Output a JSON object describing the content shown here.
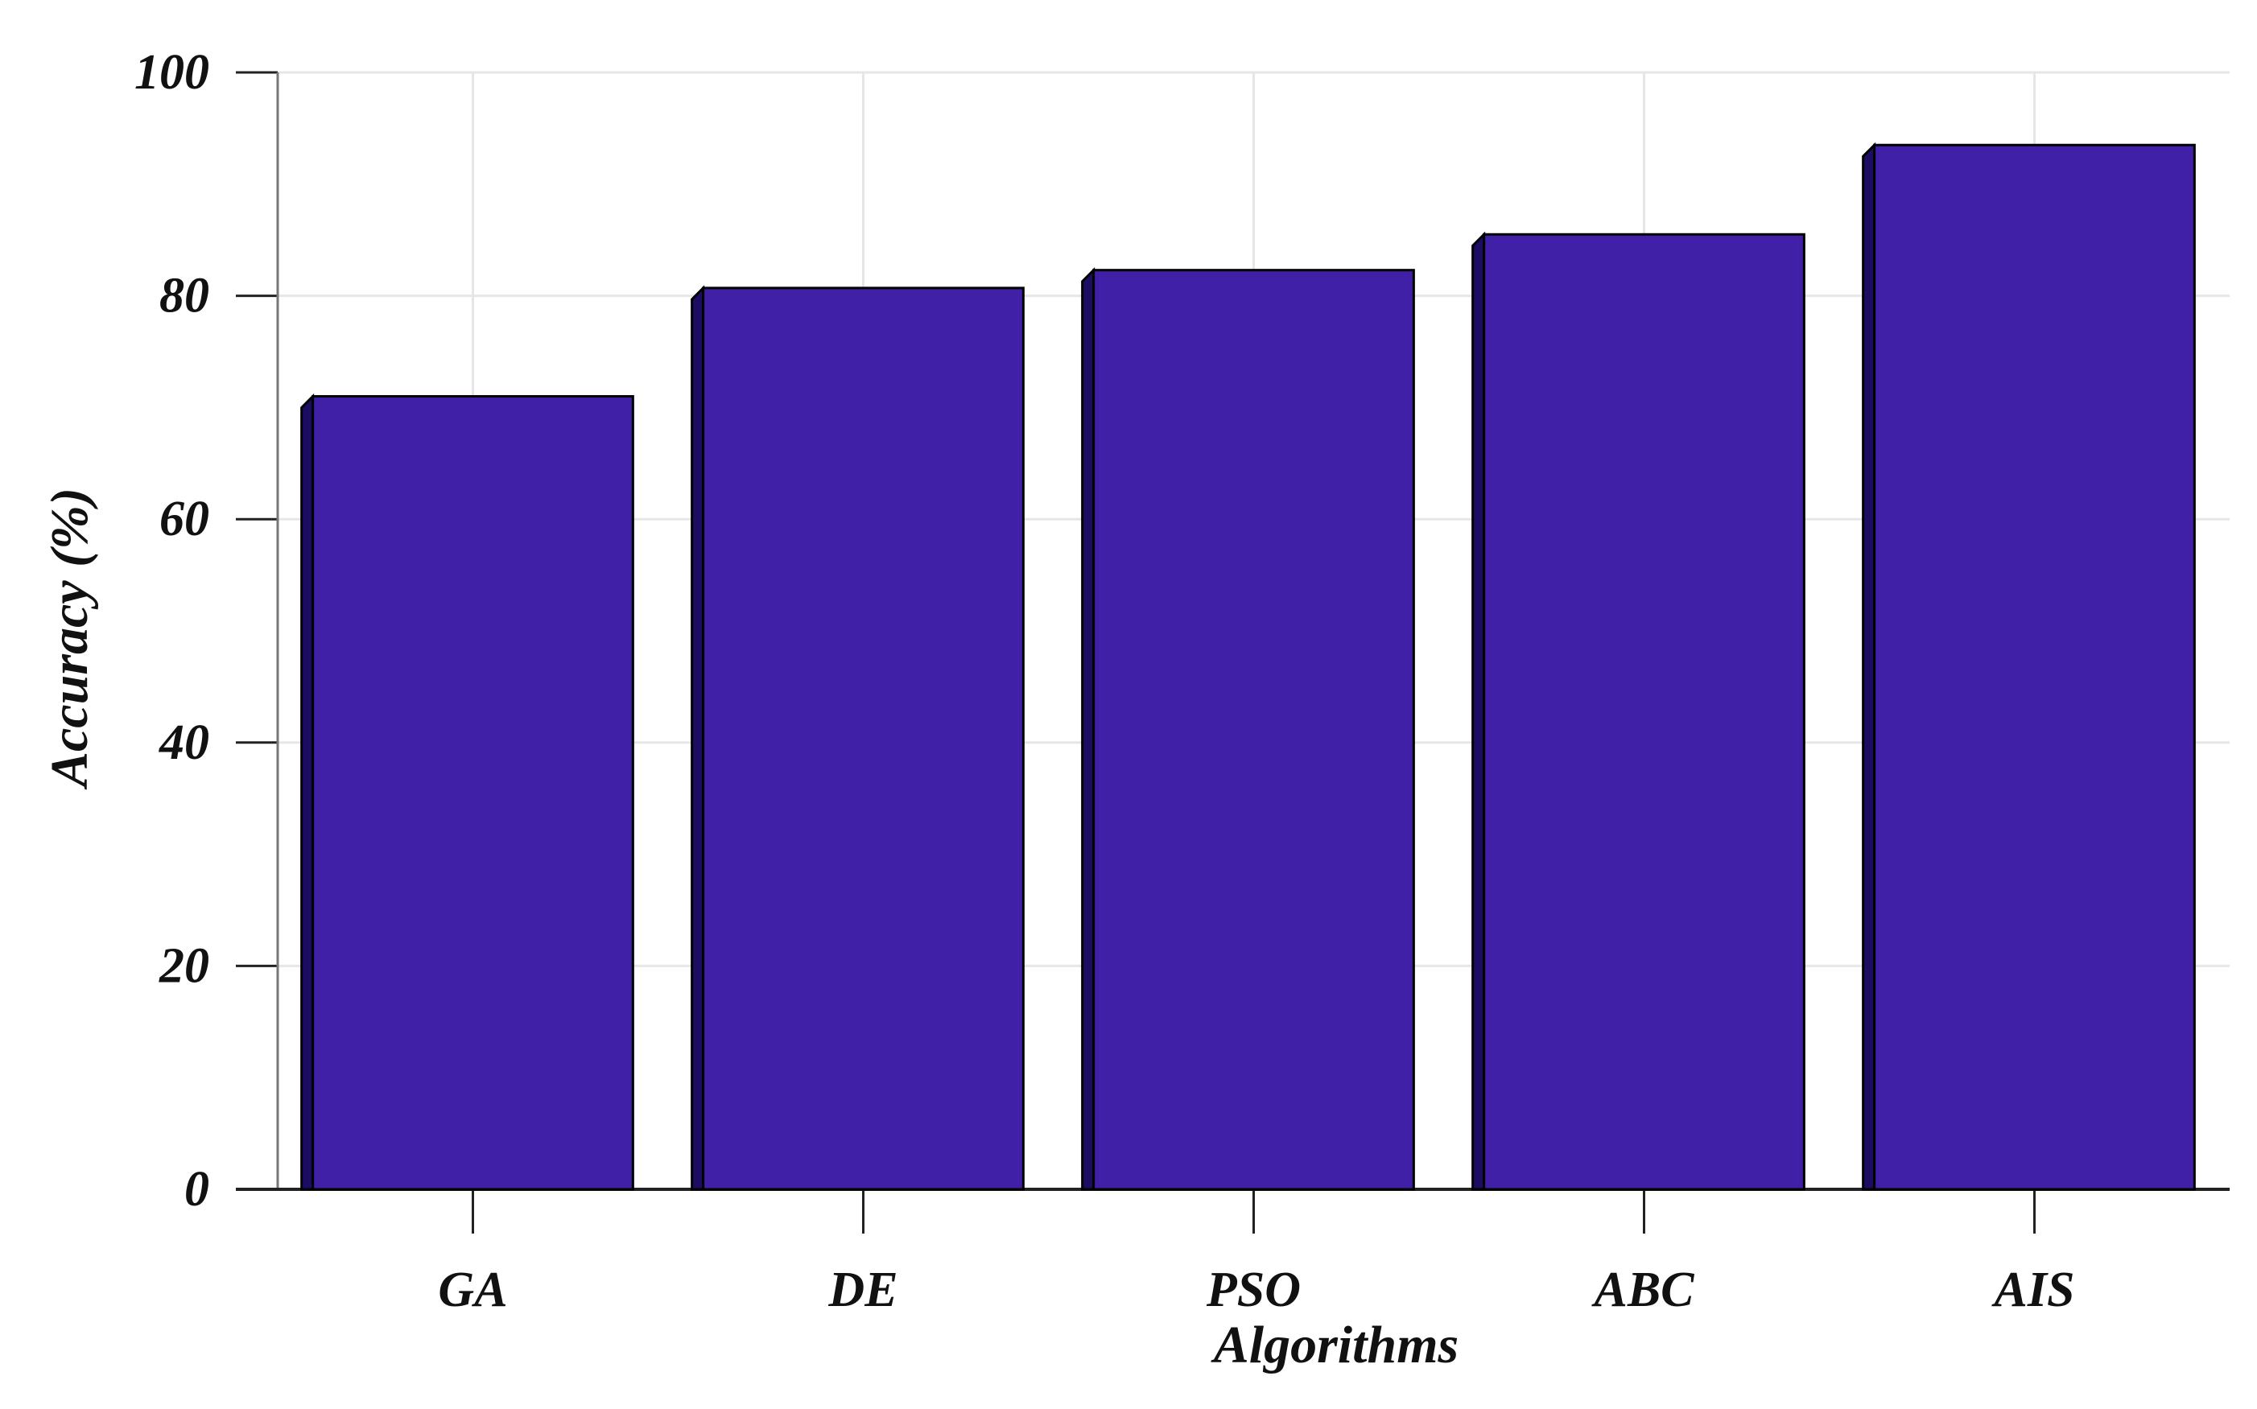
{
  "chart_data": {
    "type": "bar",
    "categories": [
      "GA",
      "DE",
      "PSO",
      "ABC",
      "AIS"
    ],
    "values": [
      71,
      80.7,
      82.3,
      85.5,
      93.5
    ],
    "xlabel": "Algorithms",
    "ylabel": "Accuracy (%)",
    "ylim": [
      0,
      100
    ],
    "yticks": [
      0,
      20,
      40,
      60,
      80,
      100
    ],
    "grid": true,
    "bar_color": "#3f20a6",
    "bar_shadow_color": "#1c0d63",
    "bar_edge_color": "#000000",
    "grid_color": "#e6e6e6"
  }
}
